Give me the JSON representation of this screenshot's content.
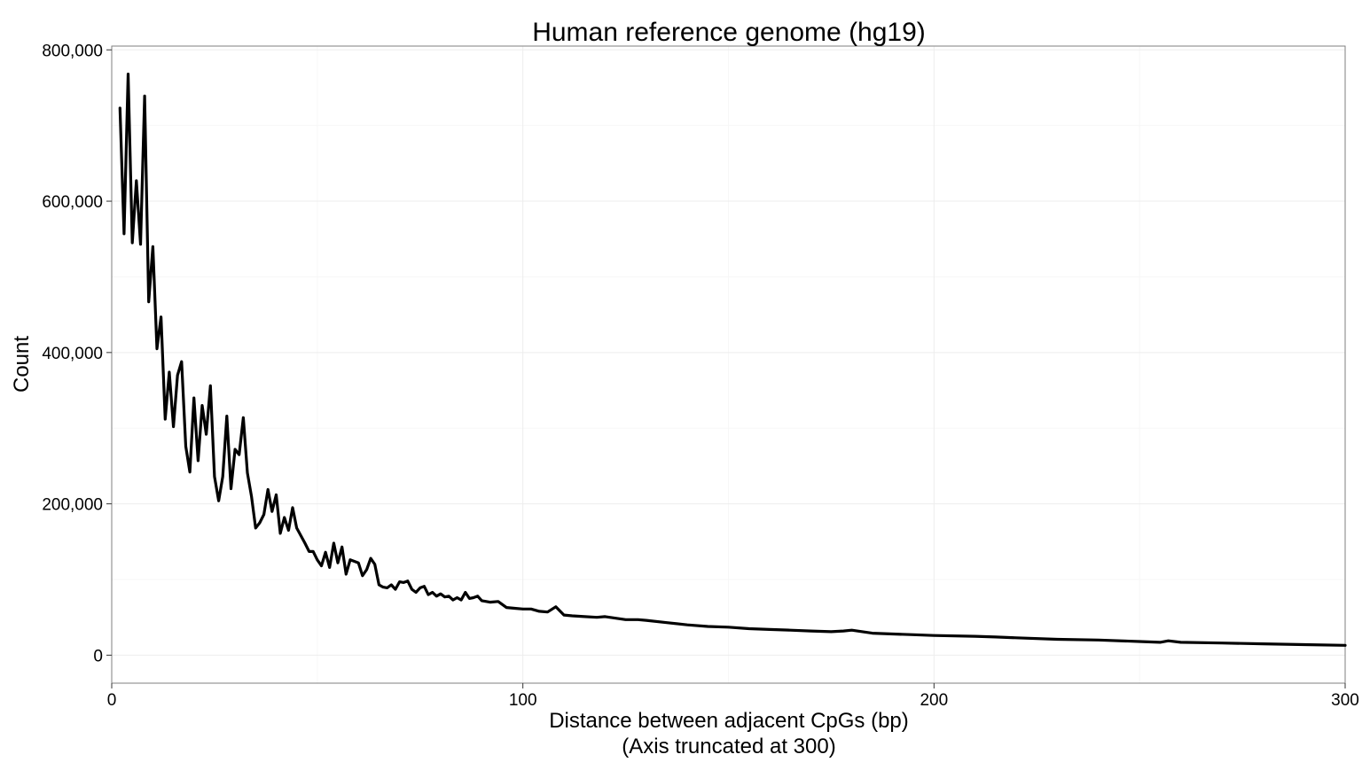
{
  "chart_data": {
    "type": "line",
    "title": "Human reference genome (hg19)",
    "xlabel": "Distance between adjacent CpGs (bp)",
    "xlabel_sub": "(Axis truncated at 300)",
    "ylabel": "Count",
    "xlim": [
      0,
      300
    ],
    "ylim": [
      -37000,
      805000
    ],
    "x_ticks": [
      0,
      100,
      200,
      300
    ],
    "x_tick_labels": [
      "0",
      "100",
      "200",
      "300"
    ],
    "y_ticks": [
      0,
      200000,
      400000,
      600000,
      800000
    ],
    "y_tick_labels": [
      "0",
      "200,000",
      "400,000",
      "600,000",
      "800,000"
    ],
    "grid": true,
    "legend": "none",
    "line_color": "#000000",
    "series": [
      {
        "x": [
          2,
          3,
          4,
          5,
          6,
          7,
          8,
          9,
          10,
          11,
          12,
          13,
          14,
          15,
          16,
          17,
          18,
          19,
          20,
          21,
          22,
          23,
          24,
          25,
          26,
          27,
          28,
          29,
          30,
          31,
          32,
          33,
          34,
          35,
          36,
          37,
          38,
          39,
          40,
          41,
          42,
          43,
          44,
          45,
          46,
          47,
          48,
          49,
          50,
          51,
          52,
          53,
          54,
          55,
          56,
          57,
          58,
          59,
          60,
          61,
          62,
          63,
          64,
          65,
          66,
          67,
          68,
          69,
          70,
          71,
          72,
          73,
          74,
          75,
          76,
          77,
          78,
          79,
          80,
          81,
          82,
          83,
          84,
          85,
          86,
          87,
          88,
          89,
          90,
          92,
          94,
          96,
          98,
          100,
          102,
          104,
          106,
          108,
          110,
          112,
          115,
          118,
          120,
          125,
          128,
          130,
          135,
          140,
          145,
          150,
          155,
          160,
          165,
          170,
          175,
          178,
          180,
          185,
          190,
          195,
          200,
          210,
          215,
          220,
          230,
          240,
          250,
          255,
          257,
          260,
          270,
          280,
          290,
          300
        ],
        "values": [
          723000,
          557000,
          768000,
          545000,
          627000,
          543000,
          739000,
          467000,
          540000,
          405000,
          447000,
          312000,
          374000,
          302000,
          370000,
          388000,
          276000,
          242000,
          340000,
          257000,
          330000,
          292000,
          356000,
          236000,
          204000,
          236000,
          316000,
          220000,
          272000,
          265000,
          314000,
          241000,
          210000,
          168000,
          175000,
          186000,
          219000,
          190000,
          212000,
          161000,
          182000,
          165000,
          195000,
          168000,
          158000,
          148000,
          137000,
          137000,
          126000,
          118000,
          136000,
          116000,
          148000,
          122000,
          143000,
          107000,
          126000,
          124000,
          122000,
          105000,
          113000,
          128000,
          120000,
          93000,
          90000,
          89000,
          93000,
          87000,
          97000,
          96000,
          98000,
          87000,
          83000,
          89000,
          91000,
          80000,
          83000,
          78000,
          81000,
          77000,
          78000,
          73000,
          76000,
          73000,
          83000,
          75000,
          76000,
          78000,
          72000,
          70000,
          71000,
          63000,
          62000,
          61000,
          61000,
          58000,
          57000,
          64000,
          53000,
          52000,
          51000,
          50000,
          51000,
          47000,
          47000,
          46000,
          43000,
          40000,
          38000,
          37000,
          35000,
          34000,
          33000,
          32000,
          31000,
          32000,
          33000,
          29000,
          28000,
          27000,
          26000,
          25000,
          24000,
          23000,
          21000,
          20000,
          18000,
          17000,
          19000,
          17000,
          16000,
          15000,
          14000,
          13000
        ]
      }
    ]
  }
}
